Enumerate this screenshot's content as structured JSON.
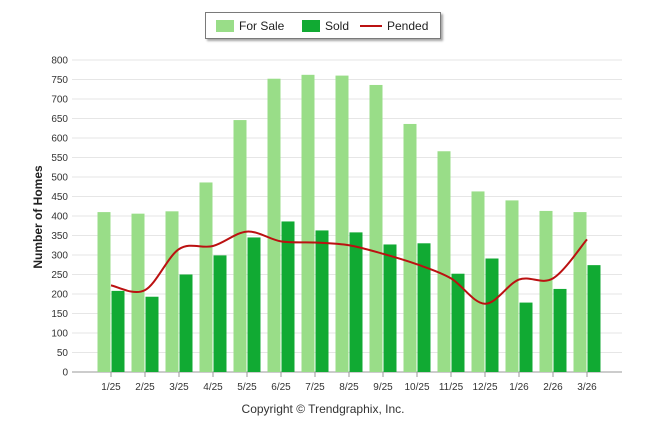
{
  "chart_data": {
    "type": "bar",
    "categories": [
      "1/25",
      "2/25",
      "3/25",
      "4/25",
      "5/25",
      "6/25",
      "7/25",
      "8/25",
      "9/25",
      "10/25",
      "11/25",
      "12/25",
      "1/26",
      "2/26",
      "3/26"
    ],
    "series": [
      {
        "name": "For Sale",
        "kind": "bar",
        "color": "#99dd88",
        "values": [
          410,
          406,
          412,
          486,
          646,
          752,
          762,
          760,
          736,
          636,
          566,
          463,
          440,
          413,
          410
        ]
      },
      {
        "name": "Sold",
        "kind": "bar",
        "color": "#11aa33",
        "values": [
          208,
          193,
          250,
          299,
          345,
          386,
          363,
          358,
          327,
          330,
          252,
          291,
          178,
          213,
          274
        ]
      },
      {
        "name": "Pended",
        "kind": "line",
        "color": "#bb1111",
        "values": [
          222,
          210,
          315,
          323,
          360,
          335,
          332,
          325,
          303,
          276,
          240,
          175,
          237,
          240,
          340
        ]
      }
    ],
    "title": "",
    "xlabel": "",
    "ylabel": "Number of Homes",
    "ylim": [
      0,
      800
    ],
    "yticks": [
      0,
      50,
      100,
      150,
      200,
      250,
      300,
      350,
      400,
      450,
      500,
      550,
      600,
      650,
      700,
      750,
      800
    ],
    "grid": true,
    "legend_position": "top-center"
  },
  "legend": {
    "for_sale": "For Sale",
    "sold": "Sold",
    "pended": "Pended"
  },
  "footer": "Copyright © Trendgraphix, Inc."
}
